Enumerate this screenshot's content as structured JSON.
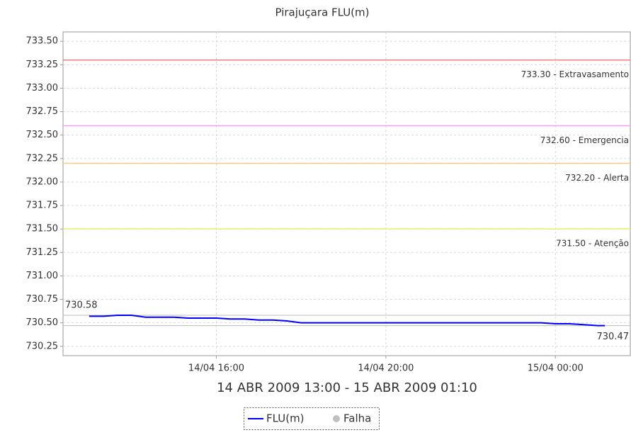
{
  "chart_data": {
    "type": "line",
    "title": "Pirajuçara FLU(m)",
    "x_label": "14 ABR 2009 13:00 - 15 ABR 2009 01:10",
    "x": [
      "2009-04-14 13:00",
      "2009-04-14 13:20",
      "2009-04-14 13:40",
      "2009-04-14 14:00",
      "2009-04-14 14:20",
      "2009-04-14 14:40",
      "2009-04-14 15:00",
      "2009-04-14 15:20",
      "2009-04-14 15:40",
      "2009-04-14 16:00",
      "2009-04-14 16:20",
      "2009-04-14 16:40",
      "2009-04-14 17:00",
      "2009-04-14 17:20",
      "2009-04-14 17:40",
      "2009-04-14 18:00",
      "2009-04-14 19:00",
      "2009-04-14 20:00",
      "2009-04-14 21:00",
      "2009-04-14 22:00",
      "2009-04-14 23:00",
      "2009-04-14 23:40",
      "2009-04-15 00:00",
      "2009-04-15 00:20",
      "2009-04-15 00:40",
      "2009-04-15 01:00",
      "2009-04-15 01:10"
    ],
    "series": [
      {
        "name": "FLU(m)",
        "color": "#0000ff",
        "values": [
          730.57,
          730.57,
          730.58,
          730.58,
          730.56,
          730.56,
          730.56,
          730.55,
          730.55,
          730.55,
          730.54,
          730.54,
          730.53,
          730.53,
          730.52,
          730.5,
          730.5,
          730.5,
          730.5,
          730.5,
          730.5,
          730.5,
          730.49,
          730.49,
          730.48,
          730.47,
          730.47
        ]
      }
    ],
    "fault_marker": {
      "name": "Falha",
      "color": "#c0c0c0"
    },
    "extremes": [
      {
        "value": 730.58,
        "label": "730.58",
        "side": "left"
      },
      {
        "value": 730.47,
        "label": "730.47",
        "side": "right"
      }
    ],
    "thresholds": [
      {
        "value": 733.3,
        "label": "733.30 - Extravasamento",
        "color": "#f08080"
      },
      {
        "value": 732.6,
        "label": "732.60 - Emergencia",
        "color": "#ff99ff"
      },
      {
        "value": 732.2,
        "label": "732.20 - Alerta",
        "color": "#ffc880"
      },
      {
        "value": 731.5,
        "label": "731.50 - Atenção",
        "color": "#eeee66"
      }
    ],
    "xlim": [
      "2009-04-14 12:23",
      "2009-04-15 01:46"
    ],
    "xticks": [
      {
        "value": "2009-04-14 16:00",
        "label": "14/04 16:00"
      },
      {
        "value": "2009-04-14 20:00",
        "label": "14/04 20:00"
      },
      {
        "value": "2009-04-15 00:00",
        "label": "15/04 00:00"
      }
    ],
    "ylim": [
      730.15,
      733.6
    ],
    "yticks": [
      730.25,
      {
        "value": 730.5,
        "label": "730.50"
      },
      730.75,
      {
        "value": 731,
        "label": "731.00"
      },
      731.25,
      {
        "value": 731.5,
        "label": "731.50"
      },
      731.75,
      {
        "value": 732,
        "label": "732.00"
      },
      732.25,
      {
        "value": 732.5,
        "label": "732.50"
      },
      732.75,
      {
        "value": 733,
        "label": "733.00"
      },
      733.25,
      {
        "value": 733.5,
        "label": "733.50"
      }
    ],
    "grid": true
  }
}
